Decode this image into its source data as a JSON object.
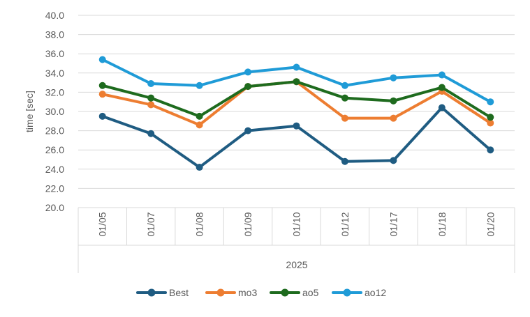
{
  "chart_data": {
    "type": "line",
    "title": "",
    "xlabel": "2025",
    "ylabel": "time [sec]",
    "ylim": [
      20.0,
      40.0
    ],
    "ytick_step": 2.0,
    "ytick_labels": [
      "20.0",
      "22.0",
      "24.0",
      "26.0",
      "28.0",
      "30.0",
      "32.0",
      "34.0",
      "36.0",
      "38.0",
      "40.0"
    ],
    "grid": true,
    "legend_position": "bottom",
    "categories": [
      "01/05",
      "01/07",
      "01/08",
      "01/09",
      "01/10",
      "01/12",
      "01/17",
      "01/18",
      "01/20"
    ],
    "group_label": "2025",
    "series": [
      {
        "name": "Best",
        "color": "#1f5c82",
        "values": [
          29.5,
          27.7,
          24.2,
          28.0,
          28.5,
          24.8,
          24.9,
          30.4,
          26.0
        ]
      },
      {
        "name": "mo3",
        "color": "#ed7d31",
        "values": [
          31.8,
          30.7,
          28.6,
          32.6,
          33.1,
          29.3,
          29.3,
          32.1,
          28.8
        ]
      },
      {
        "name": "ao5",
        "color": "#1e6b1e",
        "values": [
          32.7,
          31.4,
          29.5,
          32.6,
          33.1,
          31.4,
          31.1,
          32.5,
          29.4
        ]
      },
      {
        "name": "ao12",
        "color": "#1f9bd7",
        "values": [
          35.4,
          32.9,
          32.7,
          34.1,
          34.6,
          32.7,
          33.5,
          33.8,
          31.0
        ]
      }
    ]
  }
}
